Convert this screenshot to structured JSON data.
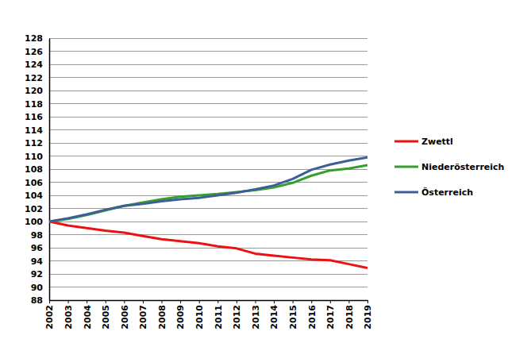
{
  "chart_data": {
    "type": "line",
    "x": [
      2002,
      2003,
      2004,
      2005,
      2006,
      2007,
      2008,
      2009,
      2010,
      2011,
      2012,
      2013,
      2014,
      2015,
      2016,
      2017,
      2018,
      2019
    ],
    "xlim": [
      2002,
      2019
    ],
    "xticks": [
      2002,
      2003,
      2004,
      2005,
      2006,
      2007,
      2008,
      2009,
      2010,
      2011,
      2012,
      2013,
      2014,
      2015,
      2016,
      2017,
      2018,
      2019
    ],
    "ylim": [
      88,
      128
    ],
    "yticks": [
      88,
      90,
      92,
      94,
      96,
      98,
      100,
      102,
      104,
      106,
      108,
      110,
      112,
      114,
      116,
      118,
      120,
      122,
      124,
      126,
      128
    ],
    "grid": true,
    "legend": "right",
    "series": [
      {
        "name": "Zwettl",
        "color": "#ee1111",
        "values": [
          100,
          99.4,
          99.0,
          98.6,
          98.3,
          97.8,
          97.3,
          97.0,
          96.7,
          96.2,
          95.9,
          95.1,
          94.8,
          94.5,
          94.2,
          94.1,
          93.5,
          92.9
        ]
      },
      {
        "name": "Niederösterreich",
        "color": "#33a02c",
        "values": [
          100,
          100.4,
          101.0,
          101.7,
          102.4,
          102.9,
          103.4,
          103.8,
          104.0,
          104.2,
          104.5,
          104.8,
          105.2,
          105.9,
          107.0,
          107.8,
          108.1,
          108.6
        ]
      },
      {
        "name": "Österreich",
        "color": "#3d5f99",
        "values": [
          100,
          100.5,
          101.1,
          101.8,
          102.4,
          102.7,
          103.1,
          103.4,
          103.6,
          104.0,
          104.4,
          104.9,
          105.5,
          106.5,
          107.9,
          108.7,
          109.3,
          109.8
        ]
      }
    ]
  }
}
